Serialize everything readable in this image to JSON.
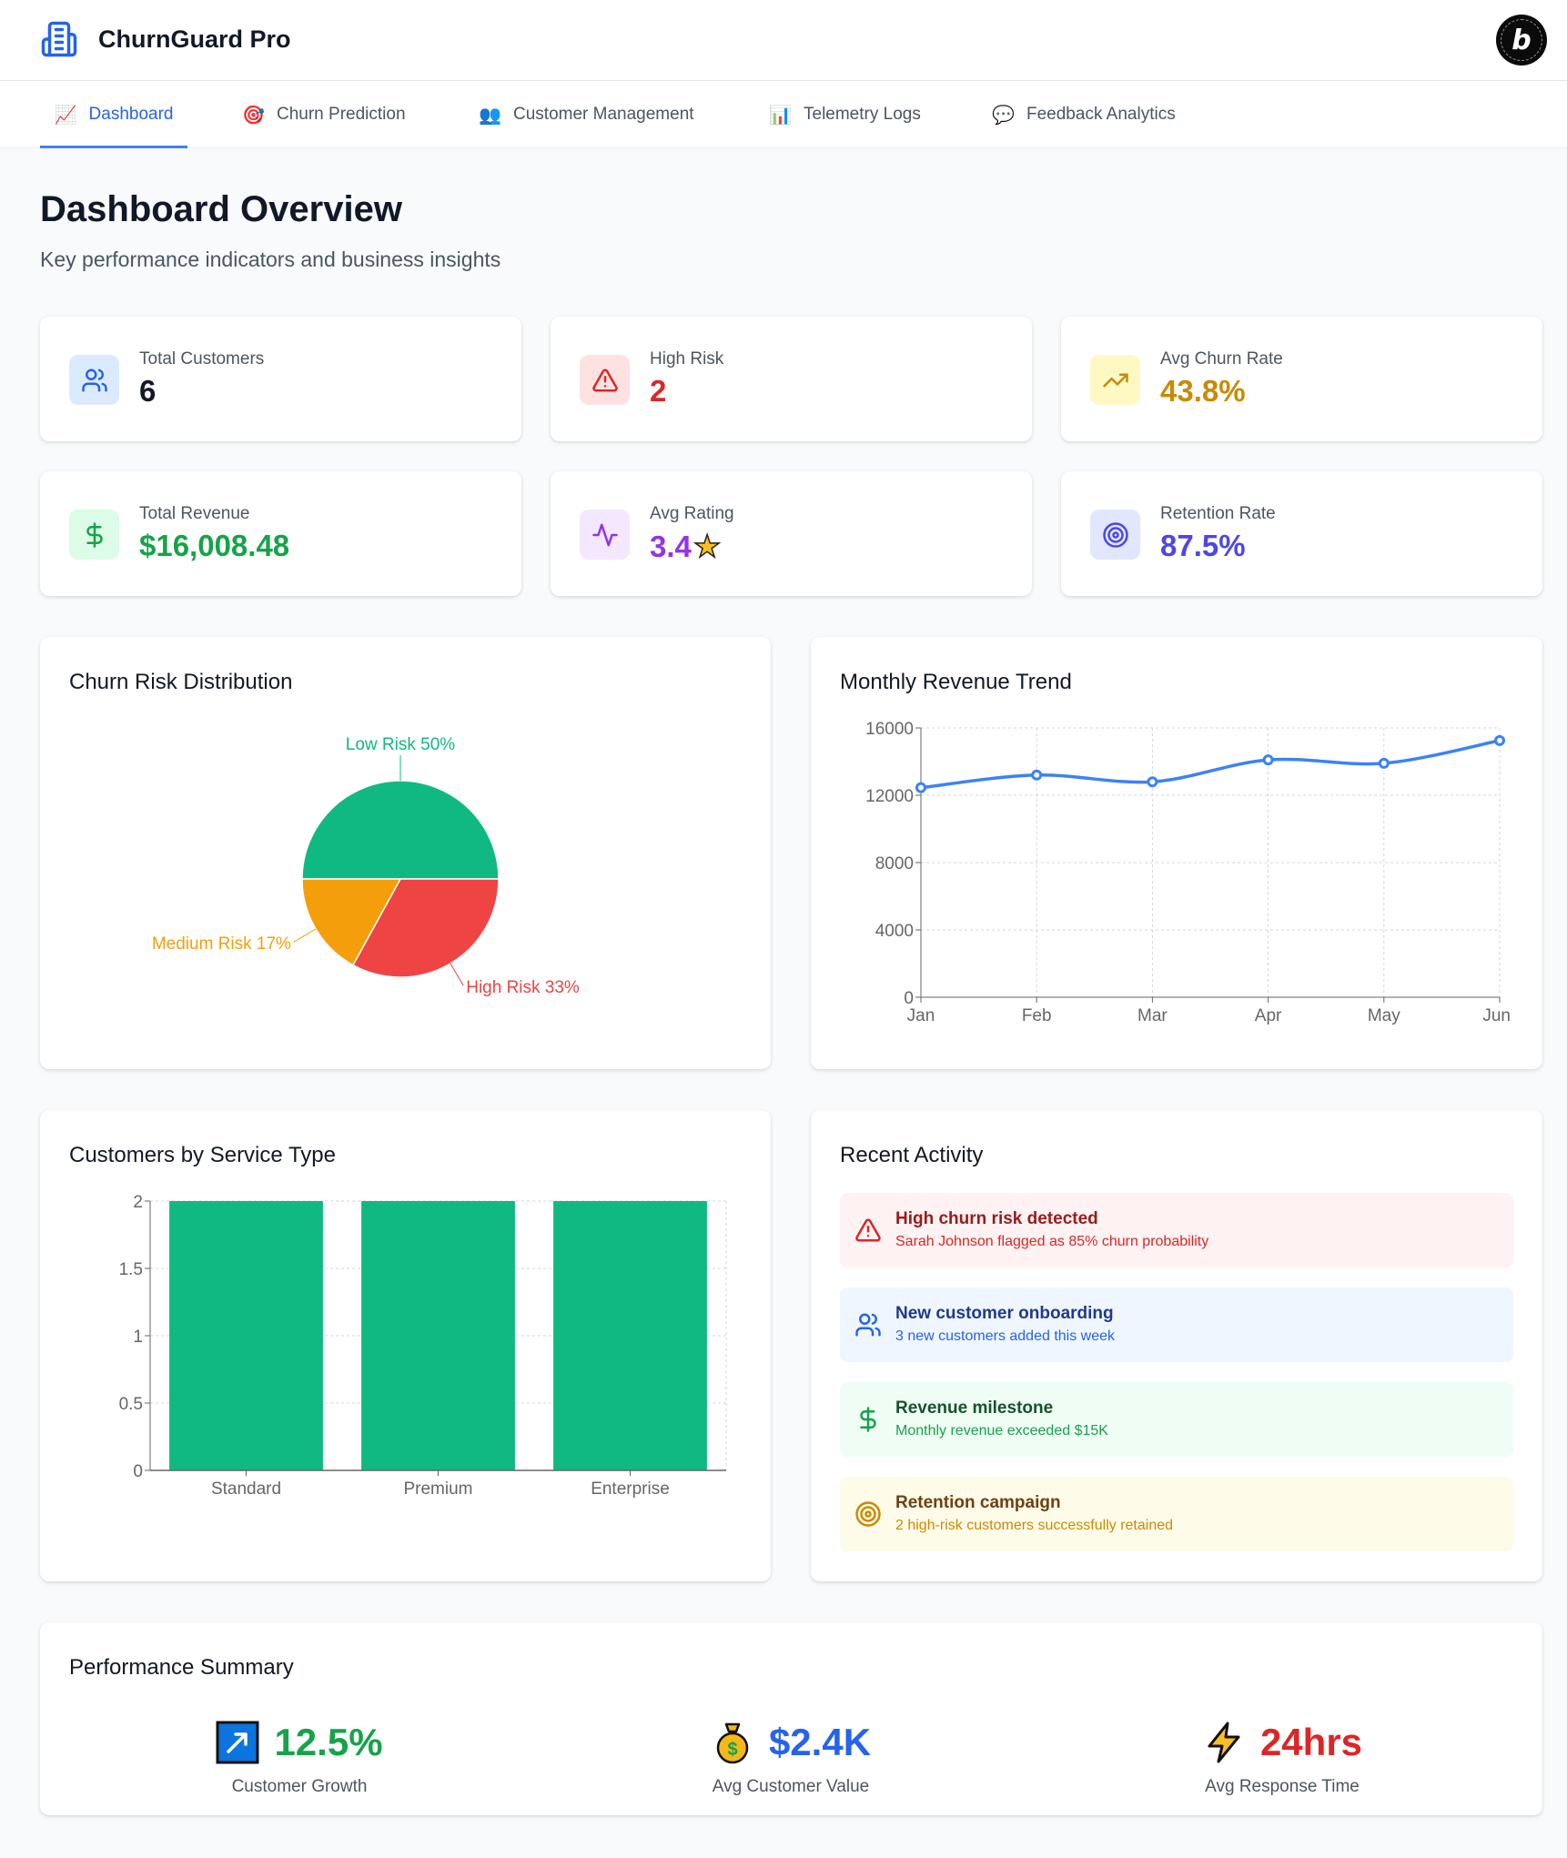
{
  "app": {
    "title": "ChurnGuard Pro",
    "badge_letter": "b"
  },
  "nav": {
    "tabs": [
      {
        "label": "Dashboard",
        "icon": "chart-increasing-icon",
        "glyph": "📈",
        "active": true
      },
      {
        "label": "Churn Prediction",
        "icon": "target-icon",
        "glyph": "🎯",
        "active": false
      },
      {
        "label": "Customer Management",
        "icon": "people-icon",
        "glyph": "👥",
        "active": false
      },
      {
        "label": "Telemetry Logs",
        "icon": "bar-chart-icon",
        "glyph": "📊",
        "active": false
      },
      {
        "label": "Feedback Analytics",
        "icon": "speech-bubble-icon",
        "glyph": "💬",
        "active": false
      }
    ]
  },
  "page": {
    "title": "Dashboard Overview",
    "subtitle": "Key performance indicators and business insights"
  },
  "stats": [
    {
      "label": "Total Customers",
      "value": "6",
      "icon": "users-icon",
      "color": "#111827",
      "icon_bg": "#dbeafe",
      "icon_color": "#2563eb"
    },
    {
      "label": "High Risk",
      "value": "2",
      "icon": "alert-triangle-icon",
      "color": "#dc2626",
      "icon_bg": "#fee2e2",
      "icon_color": "#dc2626"
    },
    {
      "label": "Avg Churn Rate",
      "value": "43.8%",
      "icon": "trending-up-icon",
      "color": "#ca8a04",
      "icon_bg": "#fef9c3",
      "icon_color": "#ca8a04"
    },
    {
      "label": "Total Revenue",
      "value": "$16,008.48",
      "icon": "dollar-icon",
      "color": "#16a34a",
      "icon_bg": "#dcfce7",
      "icon_color": "#16a34a"
    },
    {
      "label": "Avg Rating",
      "value": "3.4",
      "suffix_glyph": "★",
      "icon": "activity-icon",
      "color": "#9333ea",
      "icon_bg": "#f3e8ff",
      "icon_color": "#9333ea"
    },
    {
      "label": "Retention Rate",
      "value": "87.5%",
      "icon": "target-icon",
      "color": "#4f46e5",
      "icon_bg": "#e0e7ff",
      "icon_color": "#4f46e5"
    }
  ],
  "charts": {
    "pie_title": "Churn Risk Distribution",
    "line_title": "Monthly Revenue Trend",
    "bar_title": "Customers by Service Type"
  },
  "chart_data": [
    {
      "type": "pie",
      "title": "Churn Risk Distribution",
      "slices": [
        {
          "label": "Low Risk",
          "value": 50,
          "display": "Low Risk 50%",
          "color": "#10b981"
        },
        {
          "label": "High Risk",
          "value": 33,
          "display": "High Risk 33%",
          "color": "#ef4444"
        },
        {
          "label": "Medium Risk",
          "value": 17,
          "display": "Medium Risk 17%",
          "color": "#f59e0b"
        }
      ]
    },
    {
      "type": "line",
      "title": "Monthly Revenue Trend",
      "categories": [
        "Jan",
        "Feb",
        "Mar",
        "Apr",
        "May",
        "Jun"
      ],
      "series": [
        {
          "name": "Revenue",
          "values": [
            12450,
            13200,
            12800,
            14100,
            13900,
            15250
          ],
          "color": "#3b82f6"
        }
      ],
      "yticks": [
        0,
        4000,
        8000,
        12000,
        16000
      ],
      "ylim": [
        0,
        16000
      ],
      "grid": true,
      "xlabel": "",
      "ylabel": ""
    },
    {
      "type": "bar",
      "title": "Customers by Service Type",
      "categories": [
        "Standard",
        "Premium",
        "Enterprise"
      ],
      "values": [
        2,
        2,
        2
      ],
      "yticks": [
        "0",
        "0.5",
        "1",
        "1.5",
        "2"
      ],
      "ylim": [
        0,
        2
      ],
      "color": "#10b981",
      "grid": true,
      "xlabel": "",
      "ylabel": ""
    }
  ],
  "activity": {
    "title": "Recent Activity",
    "items": [
      {
        "title": "High churn risk detected",
        "desc": "Sarah Johnson flagged as 85% churn probability",
        "icon": "alert-triangle-icon",
        "bg": "#fef2f2",
        "title_color": "#991b1b",
        "desc_color": "#dc2626",
        "icon_color": "#dc2626"
      },
      {
        "title": "New customer onboarding",
        "desc": "3 new customers added this week",
        "icon": "users-icon",
        "bg": "#eff6ff",
        "title_color": "#1e3a8a",
        "desc_color": "#2563eb",
        "icon_color": "#2563eb"
      },
      {
        "title": "Revenue milestone",
        "desc": "Monthly revenue exceeded $15K",
        "icon": "dollar-icon",
        "bg": "#f0fdf4",
        "title_color": "#14532d",
        "desc_color": "#16a34a",
        "icon_color": "#16a34a"
      },
      {
        "title": "Retention campaign",
        "desc": "2 high-risk customers successfully retained",
        "icon": "target-icon",
        "bg": "#fefce8",
        "title_color": "#713f12",
        "desc_color": "#ca8a04",
        "icon_color": "#ca8a04"
      }
    ]
  },
  "performance": {
    "title": "Performance Summary",
    "items": [
      {
        "value": "12.5%",
        "label": "Customer Growth",
        "icon": "arrow-up-right-icon",
        "color": "#16a34a"
      },
      {
        "value": "$2.4K",
        "label": "Avg Customer Value",
        "icon": "money-bag-icon",
        "color": "#2563eb"
      },
      {
        "value": "24hrs",
        "label": "Avg Response Time",
        "icon": "lightning-icon",
        "color": "#dc2626"
      }
    ]
  }
}
